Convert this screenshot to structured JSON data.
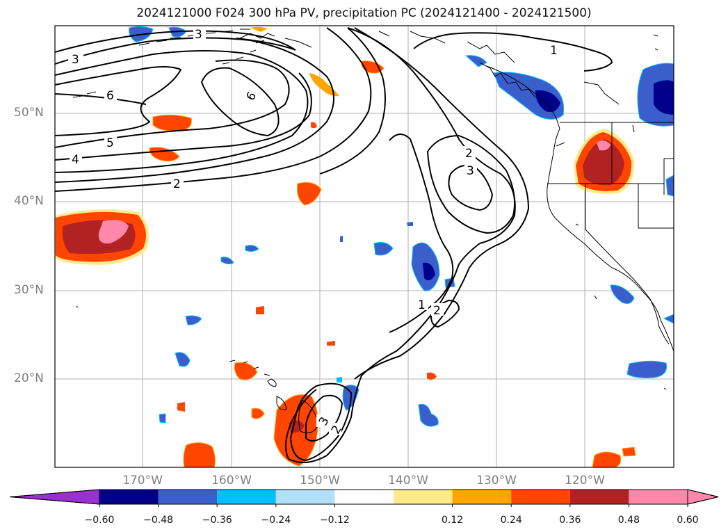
{
  "title": "2024121000 F024 300 hPa PV, precipitation PC (2024121400 - 2024121500)",
  "lat_labels": [
    "50°N",
    "40°N",
    "30°N",
    "20°N"
  ],
  "lon_labels": [
    "170°W",
    "160°W",
    "150°W",
    "140°W",
    "130°W",
    "120°W"
  ],
  "contour_labels": [
    "3",
    "3",
    "6",
    "6",
    "5",
    "4",
    "2",
    "1",
    "2",
    "3",
    "1",
    "2",
    "3",
    "2"
  ],
  "colorbar": {
    "tick_labels": [
      "−0.60",
      "−0.48",
      "−0.36",
      "−0.24",
      "−0.12",
      "0.12",
      "0.24",
      "0.36",
      "0.48",
      "0.60"
    ],
    "colors": [
      "#9b30d0",
      "#00008b",
      "#3a5fcd",
      "#00bfff",
      "#b0e0fa",
      "#ffffff",
      "#ffea8a",
      "#ffa500",
      "#ff4500",
      "#b22222",
      "#ff88aa",
      "#ff88aa"
    ]
  },
  "colors": {
    "pos_low": "#ffea8a",
    "pos_mid": "#ffa500",
    "pos_high": "#ff4500",
    "pos_higher": "#b22222",
    "pos_max": "#ff88aa",
    "neg_low": "#b0e0fa",
    "neg_mid": "#00bfff",
    "neg_high": "#3a5fcd",
    "neg_max": "#00008b"
  }
}
